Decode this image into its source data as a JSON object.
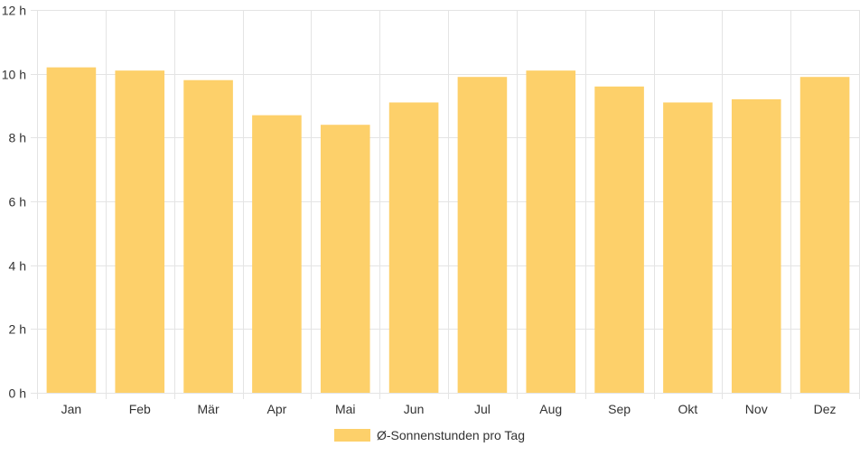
{
  "chart_data": {
    "type": "bar",
    "categories": [
      "Jan",
      "Feb",
      "Mär",
      "Apr",
      "Mai",
      "Jun",
      "Jul",
      "Aug",
      "Sep",
      "Okt",
      "Nov",
      "Dez"
    ],
    "series": [
      {
        "name": "Ø-Sonnenstunden pro Tag",
        "values": [
          10.2,
          10.1,
          9.8,
          8.7,
          8.4,
          9.1,
          9.9,
          10.1,
          9.6,
          9.1,
          9.2,
          9.9
        ],
        "color": "#fdd06a"
      }
    ],
    "ylim": [
      0,
      12
    ],
    "y_ticks": [
      0,
      2,
      4,
      6,
      8,
      10,
      12
    ],
    "y_tick_suffix": " h",
    "grid": true,
    "grid_color": "#e4e4e4",
    "legend_position": "bottom"
  }
}
